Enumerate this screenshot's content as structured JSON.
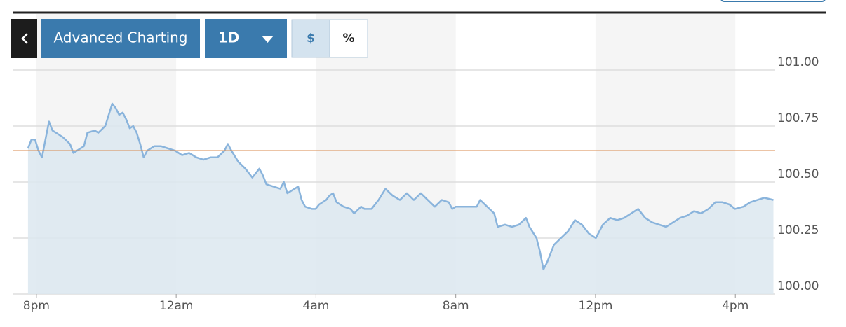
{
  "chart_data": {
    "type": "line",
    "toolbar": {
      "title": "Advanced Charting",
      "range": "1D",
      "modes": [
        "$",
        "%"
      ]
    },
    "x": [
      -0.24,
      -0.14,
      -0.04,
      0.06,
      0.16,
      0.26,
      0.36,
      0.46,
      0.56,
      0.76,
      0.96,
      1.06,
      1.16,
      1.36,
      1.46,
      1.67,
      1.77,
      1.97,
      2.07,
      2.17,
      2.27,
      2.37,
      2.47,
      2.57,
      2.67,
      2.77,
      2.87,
      2.97,
      3.07,
      3.17,
      3.37,
      3.57,
      3.77,
      3.97,
      4.07,
      4.17,
      4.37,
      4.58,
      4.78,
      4.98,
      5.18,
      5.38,
      5.48,
      5.58,
      5.78,
      5.98,
      6.18,
      6.38,
      6.48,
      6.58,
      6.78,
      6.98,
      7.08,
      7.18,
      7.39,
      7.49,
      7.59,
      7.69,
      7.89,
      7.99,
      8.09,
      8.29,
      8.39,
      8.49,
      8.59,
      8.79,
      8.99,
      9.09,
      9.29,
      9.39,
      9.59,
      9.79,
      9.99,
      10.19,
      10.4,
      10.6,
      10.8,
      11.0,
      11.2,
      11.4,
      11.6,
      11.8,
      11.9,
      12.0,
      12.2,
      12.4,
      12.6,
      12.7,
      12.9,
      13.1,
      13.2,
      13.41,
      13.61,
      13.81,
      14.01,
      14.11,
      14.31,
      14.41,
      14.51,
      14.61,
      14.81,
      15.01,
      15.21,
      15.41,
      15.61,
      15.81,
      16.01,
      16.21,
      16.42,
      16.62,
      16.82,
      17.02,
      17.22,
      17.42,
      17.62,
      17.82,
      18.02,
      18.22,
      18.42,
      18.62,
      18.82,
      19.02,
      19.23,
      19.43,
      19.63,
      19.83,
      19.99,
      20.23,
      20.43,
      20.63,
      20.83,
      21.09
    ],
    "series": [
      {
        "color": "#8ab4dc",
        "values": [
          100.65,
          100.69,
          100.69,
          100.64,
          100.61,
          100.69,
          100.77,
          100.73,
          100.72,
          100.7,
          100.67,
          100.63,
          100.64,
          100.66,
          100.72,
          100.73,
          100.72,
          100.75,
          100.8,
          100.85,
          100.83,
          100.8,
          100.81,
          100.78,
          100.74,
          100.75,
          100.72,
          100.67,
          100.61,
          100.64,
          100.66,
          100.66,
          100.65,
          100.64,
          100.63,
          100.62,
          100.63,
          100.61,
          100.6,
          100.61,
          100.61,
          100.64,
          100.67,
          100.64,
          100.59,
          100.56,
          100.52,
          100.56,
          100.53,
          100.49,
          100.48,
          100.47,
          100.5,
          100.45,
          100.47,
          100.48,
          100.42,
          100.39,
          100.38,
          100.38,
          100.4,
          100.42,
          100.44,
          100.45,
          100.41,
          100.39,
          100.38,
          100.36,
          100.39,
          100.38,
          100.38,
          100.42,
          100.47,
          100.44,
          100.42,
          100.45,
          100.42,
          100.45,
          100.42,
          100.39,
          100.42,
          100.41,
          100.38,
          100.39,
          100.39,
          100.39,
          100.39,
          100.42,
          100.39,
          100.36,
          100.3,
          100.31,
          100.3,
          100.31,
          100.34,
          100.3,
          100.25,
          100.19,
          100.11,
          100.14,
          100.22,
          100.25,
          100.28,
          100.33,
          100.31,
          100.27,
          100.25,
          100.31,
          100.34,
          100.33,
          100.34,
          100.36,
          100.38,
          100.34,
          100.32,
          100.31,
          100.3,
          100.32,
          100.34,
          100.35,
          100.37,
          100.36,
          100.38,
          100.41,
          100.41,
          100.4,
          100.38,
          100.39,
          100.41,
          100.42,
          100.43,
          100.42
        ]
      }
    ],
    "reference_line": {
      "value": 100.64,
      "color": "#d98a4e"
    },
    "xlim": [
      -0.68,
      21.14
    ],
    "xticks": [
      {
        "value": 0,
        "label": "8pm"
      },
      {
        "value": 4,
        "label": "12am"
      },
      {
        "value": 8,
        "label": "4am"
      },
      {
        "value": 12,
        "label": "8am"
      },
      {
        "value": 16,
        "label": "12pm"
      },
      {
        "value": 20,
        "label": "4pm"
      }
    ],
    "ylim": [
      100,
      101.25
    ],
    "yticks": [
      {
        "value": 100,
        "label": "100.00"
      },
      100.25,
      {
        "value": 100.5,
        "label": "100.50"
      },
      100.75,
      {
        "value": 101,
        "label": "101.00"
      }
    ],
    "grid": true,
    "area_fill": "#dce7f0",
    "band_fill": "#f5f5f5"
  }
}
